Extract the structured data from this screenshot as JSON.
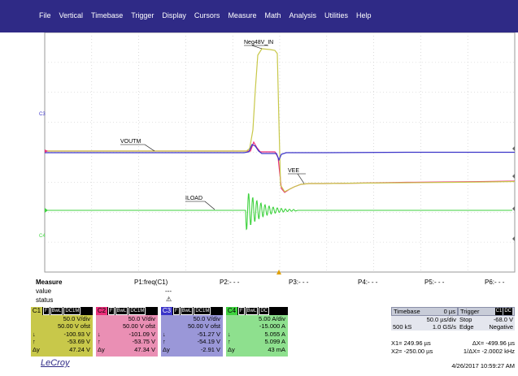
{
  "menu": [
    "File",
    "Vertical",
    "Timebase",
    "Trigger",
    "Display",
    "Cursors",
    "Measure",
    "Math",
    "Analysis",
    "Utilities",
    "Help"
  ],
  "grid": {
    "trace_labels": {
      "neg48": "Neg48V_IN",
      "voutm": "VOUTM",
      "vee": "VEE",
      "iload": "ILOAD"
    },
    "left_markers": {
      "c3": "C3",
      "c4": "C4"
    }
  },
  "measure": {
    "title": "Measure",
    "row_value": "value",
    "row_status": "status",
    "p1_label": "P1:freq(C1)",
    "p1_value": "---",
    "p1_status": "⚠",
    "p2": "P2:- - -",
    "p3": "P3:- - -",
    "p4": "P4:- - -",
    "p5": "P5:- - -",
    "p6": "P6:- - -"
  },
  "channels": [
    {
      "name": "C1",
      "color": "#c8c84a",
      "tags": [
        "F",
        "BwL",
        "DC1M"
      ],
      "vdiv": "50.0 V/div",
      "offset": "50.00 V ofst",
      "down": "-100.93 V",
      "up": "-53.69 V",
      "dy": "47.24 V"
    },
    {
      "name": "C2",
      "color": "#ea2f7a",
      "tags": [
        "F",
        "BwL",
        "DC1M"
      ],
      "vdiv": "50.0 V/div",
      "offset": "50.00 V ofst",
      "down": "-101.09 V",
      "up": "-53.75 V",
      "dy": "47.34 V"
    },
    {
      "name": "C3",
      "color": "#3a33c8",
      "tags": [
        "F",
        "BwL",
        "DC1M"
      ],
      "vdiv": "50.0 V/div",
      "offset": "50.00 V ofst",
      "down": "-51.27 V",
      "up": "-54.19 V",
      "dy": "-2.91 V"
    },
    {
      "name": "C4",
      "color": "#3fd23f",
      "tags": [
        "F",
        "BwL",
        "DC"
      ],
      "vdiv": "5.00 A/div",
      "offset": "-15.000 A",
      "down": "5.055 A",
      "up": "5.099 A",
      "dy": "43 mA"
    }
  ],
  "symbols": {
    "down": "↓",
    "up": "↑",
    "delta": "Δy"
  },
  "timebase": {
    "label": "Timebase",
    "delay": "0 µs",
    "per_div": "50.0 µs/div",
    "samples": "500 kS",
    "rate": "1.0 GS/s"
  },
  "trigger": {
    "label": "Trigger",
    "tags": [
      "C1",
      "DC"
    ],
    "mode": "Stop",
    "level": "-68.0 V",
    "type": "Edge",
    "slope": "Negative"
  },
  "cursors": {
    "x1": "X1=   249.96 µs",
    "dx": "ΔX=   -499.96 µs",
    "x2": "X2=  -250.00 µs",
    "inv_dx": "1/ΔX=  -2.0002 kHz"
  },
  "brand": "LeCroy",
  "datetime": "4/26/2017 10:59:27 AM",
  "colors": {
    "menu_bg": "#2f2a86",
    "c1": "#c8c84a",
    "c2": "#ea2f7a",
    "c3": "#3a33c8",
    "c4": "#3fd23f"
  }
}
